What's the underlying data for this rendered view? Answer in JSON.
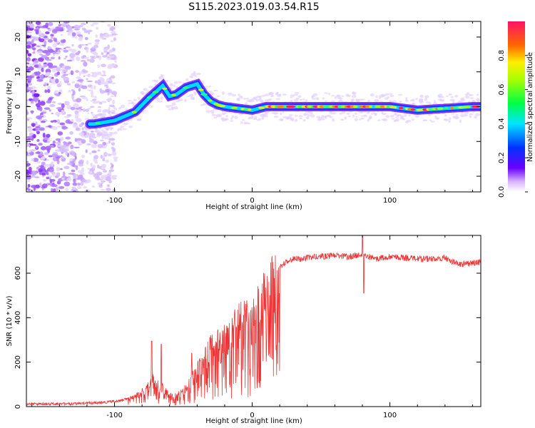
{
  "title": "S115.2023.019.03.54.R15",
  "chart_data": [
    {
      "type": "heatmap",
      "xlabel": "Height of straight line (km)",
      "ylabel": "Frequency (Hz)",
      "xlim": [
        -164,
        166
      ],
      "ylim": [
        -24.5,
        24.5
      ],
      "x_ticks": [
        -100,
        0,
        100
      ],
      "y_ticks": [
        -20,
        -10,
        0,
        10,
        20
      ],
      "colorbar": {
        "label": "Normalized spectral amplitude",
        "range": [
          0.0,
          1.0
        ],
        "ticks": [
          0.0,
          0.2,
          0.4,
          0.6,
          0.8
        ]
      },
      "ridge": {
        "x": [
          -115,
          -100,
          -85,
          -75,
          -65,
          -60,
          -55,
          -48,
          -40,
          -35,
          -30,
          -25,
          -20,
          -10,
          0,
          10,
          20,
          40,
          60,
          80,
          100,
          120,
          140,
          160,
          166
        ],
        "y": [
          -5,
          -4,
          -1.5,
          2.5,
          6,
          3,
          3.5,
          5.5,
          6.5,
          3.5,
          1.5,
          0.5,
          0,
          -0.5,
          -1,
          0,
          0,
          0,
          0,
          0,
          0,
          -1,
          -0.5,
          0,
          0
        ]
      }
    },
    {
      "type": "line",
      "xlabel": "Height of straight line (km)",
      "ylabel": "SNR (10 * v/v)",
      "xlim": [
        -164,
        166
      ],
      "ylim": [
        0,
        770
      ],
      "x_ticks": [
        -100,
        0,
        100
      ],
      "y_ticks": [
        0,
        200,
        400,
        600
      ],
      "color": "#ee3333",
      "envelope": {
        "x": [
          -164,
          -130,
          -110,
          -95,
          -85,
          -78,
          -72,
          -65,
          -60,
          -55,
          -50,
          -45,
          -40,
          -35,
          -30,
          -25,
          -20,
          -15,
          -10,
          -5,
          0,
          5,
          10,
          15,
          20,
          25,
          30,
          35,
          40,
          50,
          60,
          70,
          80,
          85,
          90,
          100,
          110,
          120,
          130,
          140,
          150,
          160,
          166
        ],
        "y": [
          15,
          15,
          20,
          30,
          50,
          80,
          130,
          90,
          60,
          50,
          80,
          120,
          170,
          220,
          280,
          300,
          330,
          360,
          400,
          420,
          420,
          480,
          540,
          590,
          630,
          660,
          670,
          670,
          675,
          680,
          685,
          680,
          690,
          680,
          670,
          680,
          675,
          670,
          670,
          675,
          645,
          650,
          655
        ]
      },
      "spikes": [
        {
          "x": -73,
          "y": 295
        },
        {
          "x": -66,
          "y": 280
        },
        {
          "x": -44,
          "y": 240
        },
        {
          "x": 80,
          "y": 770
        },
        {
          "x": 81,
          "y": 510
        }
      ]
    }
  ]
}
